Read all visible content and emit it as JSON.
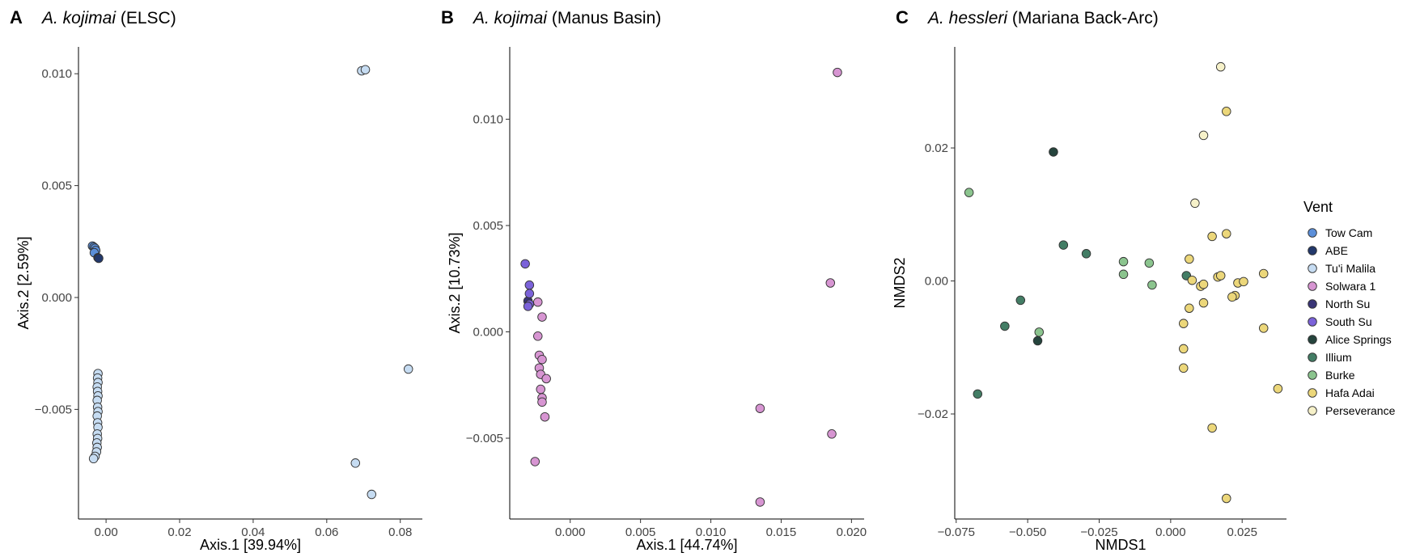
{
  "legend": {
    "title": "Vent",
    "items": [
      {
        "name": "Tow Cam",
        "color": "#5b8fd9"
      },
      {
        "name": "ABE",
        "color": "#22386b"
      },
      {
        "name": "Tu'i Malila",
        "color": "#c6dcf2"
      },
      {
        "name": "Solwara 1",
        "color": "#d795d2"
      },
      {
        "name": "North Su",
        "color": "#3a3577"
      },
      {
        "name": "South Su",
        "color": "#7b62d9"
      },
      {
        "name": "Alice Springs",
        "color": "#25443d"
      },
      {
        "name": "Illium",
        "color": "#437d65"
      },
      {
        "name": "Burke",
        "color": "#8bc48e"
      },
      {
        "name": "Hafa Adai",
        "color": "#ecd77a"
      },
      {
        "name": "Perseverance",
        "color": "#f6f1c9"
      }
    ]
  },
  "chart_data": [
    {
      "type": "scatter",
      "panel": "A",
      "title_italic": "A. kojimai",
      "title_rest": " (ELSC)",
      "xlabel": "Axis.1 [39.94%]",
      "ylabel": "Axis.2 [2.59%]",
      "xlim": [
        -0.0075,
        0.086
      ],
      "ylim": [
        -0.0099,
        0.0112
      ],
      "xticks": [
        0.0,
        0.02,
        0.04,
        0.06,
        0.08
      ],
      "xtick_labels": [
        "0.00",
        "0.02",
        "0.04",
        "0.06",
        "0.08"
      ],
      "yticks": [
        -0.005,
        0.0,
        0.005,
        0.01
      ],
      "ytick_labels": [
        "−0.005",
        "0.000",
        "0.005",
        "0.010"
      ],
      "series": [
        {
          "name": "Tow Cam",
          "points": [
            [
              -0.0037,
              0.0023
            ],
            [
              -0.0033,
              0.00225
            ],
            [
              -0.003,
              0.0022
            ],
            [
              -0.0028,
              0.0021
            ],
            [
              -0.0032,
              0.002
            ]
          ]
        },
        {
          "name": "ABE",
          "points": [
            [
              -0.0022,
              0.00178
            ],
            [
              -0.002,
              0.00175
            ]
          ]
        },
        {
          "name": "Tu'i Malila",
          "points": [
            [
              0.0695,
              0.01013
            ],
            [
              0.0705,
              0.01018
            ],
            [
              0.0822,
              -0.0032
            ],
            [
              0.0678,
              -0.0074
            ],
            [
              0.0722,
              -0.0088
            ],
            [
              -0.0022,
              -0.0034
            ],
            [
              -0.0023,
              -0.0036
            ],
            [
              -0.0022,
              -0.0038
            ],
            [
              -0.0024,
              -0.004
            ],
            [
              -0.0023,
              -0.0042
            ],
            [
              -0.0022,
              -0.0044
            ],
            [
              -0.0024,
              -0.0046
            ],
            [
              -0.0023,
              -0.0049
            ],
            [
              -0.0022,
              -0.0051
            ],
            [
              -0.0024,
              -0.0053
            ],
            [
              -0.0023,
              -0.0056
            ],
            [
              -0.0022,
              -0.0058
            ],
            [
              -0.0024,
              -0.0061
            ],
            [
              -0.0023,
              -0.0063
            ],
            [
              -0.0025,
              -0.0065
            ],
            [
              -0.0024,
              -0.0067
            ],
            [
              -0.0026,
              -0.0069
            ],
            [
              -0.003,
              -0.0071
            ],
            [
              -0.0034,
              -0.0072
            ]
          ]
        }
      ]
    },
    {
      "type": "scatter",
      "panel": "B",
      "title_italic": "A. kojimai",
      "title_rest": " (Manus Basin)",
      "xlabel": "Axis.1 [44.74%]",
      "ylabel": "Axis.2 [10.73%]",
      "xlim": [
        -0.0043,
        0.0209
      ],
      "ylim": [
        -0.0088,
        0.0134
      ],
      "xticks": [
        0.0,
        0.005,
        0.01,
        0.015,
        0.02
      ],
      "xtick_labels": [
        "0.000",
        "0.005",
        "0.010",
        "0.015",
        "0.020"
      ],
      "yticks": [
        -0.005,
        0.0,
        0.005,
        0.01
      ],
      "ytick_labels": [
        "−0.005",
        "0.000",
        "0.005",
        "0.010"
      ],
      "series": [
        {
          "name": "Solwara 1",
          "points": [
            [
              0.019,
              0.0122
            ],
            [
              0.0185,
              0.0023
            ],
            [
              0.0186,
              -0.0048
            ],
            [
              0.0135,
              -0.0036
            ],
            [
              0.0135,
              -0.008
            ],
            [
              -0.0023,
              0.0014
            ],
            [
              -0.002,
              0.0007
            ],
            [
              -0.0023,
              -0.0002
            ],
            [
              -0.0022,
              -0.0011
            ],
            [
              -0.002,
              -0.0013
            ],
            [
              -0.0022,
              -0.0017
            ],
            [
              -0.0021,
              -0.002
            ],
            [
              -0.0017,
              -0.0022
            ],
            [
              -0.0021,
              -0.0027
            ],
            [
              -0.002,
              -0.0031
            ],
            [
              -0.002,
              -0.0033
            ],
            [
              -0.0018,
              -0.004
            ],
            [
              -0.0025,
              -0.0061
            ]
          ]
        },
        {
          "name": "North Su",
          "points": [
            [
              -0.003,
              0.00145
            ]
          ]
        },
        {
          "name": "South Su",
          "points": [
            [
              -0.0032,
              0.0032
            ],
            [
              -0.0029,
              0.0022
            ],
            [
              -0.0029,
              0.0018
            ],
            [
              -0.0029,
              0.0013
            ],
            [
              -0.003,
              0.0012
            ]
          ]
        }
      ]
    },
    {
      "type": "scatter",
      "panel": "C",
      "title_italic": "A. hessleri",
      "title_rest": " (Mariana Back-Arc)",
      "xlabel": "NMDS1",
      "ylabel": "NMDS2",
      "xlim": [
        -0.0755,
        0.0405
      ],
      "ylim": [
        -0.0358,
        0.0352
      ],
      "xticks": [
        -0.075,
        -0.05,
        -0.025,
        0.0,
        0.025
      ],
      "xtick_labels": [
        "−0.075",
        "−0.050",
        "−0.025",
        "0.000",
        "0.025"
      ],
      "yticks": [
        -0.02,
        0.0,
        0.02
      ],
      "ytick_labels": [
        "−0.02",
        "0.00",
        "0.02"
      ],
      "series": [
        {
          "name": "Alice Springs",
          "points": [
            [
              -0.041,
              0.0194
            ],
            [
              -0.0465,
              -0.009
            ]
          ]
        },
        {
          "name": "Illium",
          "points": [
            [
              -0.0375,
              0.0054
            ],
            [
              -0.0295,
              0.0041
            ],
            [
              -0.0525,
              -0.0029
            ],
            [
              -0.058,
              -0.0068
            ],
            [
              -0.0675,
              -0.017
            ],
            [
              0.0055,
              0.0008
            ]
          ]
        },
        {
          "name": "Burke",
          "points": [
            [
              -0.0705,
              0.0133
            ],
            [
              -0.0165,
              0.0029
            ],
            [
              -0.0165,
              0.001
            ],
            [
              -0.0075,
              0.0027
            ],
            [
              -0.0065,
              -0.0006
            ],
            [
              -0.046,
              -0.0077
            ]
          ]
        },
        {
          "name": "Hafa Adai",
          "points": [
            [
              0.0195,
              0.0255
            ],
            [
              0.0145,
              0.0067
            ],
            [
              0.0195,
              0.0071
            ],
            [
              0.0065,
              0.0033
            ],
            [
              0.0075,
              0.0001
            ],
            [
              0.0105,
              -0.0008
            ],
            [
              0.0115,
              -0.0005
            ],
            [
              0.0165,
              0.0006
            ],
            [
              0.0175,
              0.0008
            ],
            [
              0.0235,
              -0.0003
            ],
            [
              0.0255,
              -0.0001
            ],
            [
              0.0325,
              0.0011
            ],
            [
              0.0225,
              -0.0022
            ],
            [
              0.0215,
              -0.0024
            ],
            [
              0.0115,
              -0.0033
            ],
            [
              0.0065,
              -0.0041
            ],
            [
              0.0045,
              -0.0064
            ],
            [
              0.0325,
              -0.0071
            ],
            [
              0.0045,
              -0.0102
            ],
            [
              0.0045,
              -0.0131
            ],
            [
              0.0145,
              -0.0221
            ],
            [
              0.0195,
              -0.0327
            ],
            [
              0.0375,
              -0.0162
            ]
          ]
        },
        {
          "name": "Perseverance",
          "points": [
            [
              0.0175,
              0.0322
            ],
            [
              0.0115,
              0.0219
            ],
            [
              0.0085,
              0.0117
            ]
          ]
        }
      ]
    }
  ]
}
